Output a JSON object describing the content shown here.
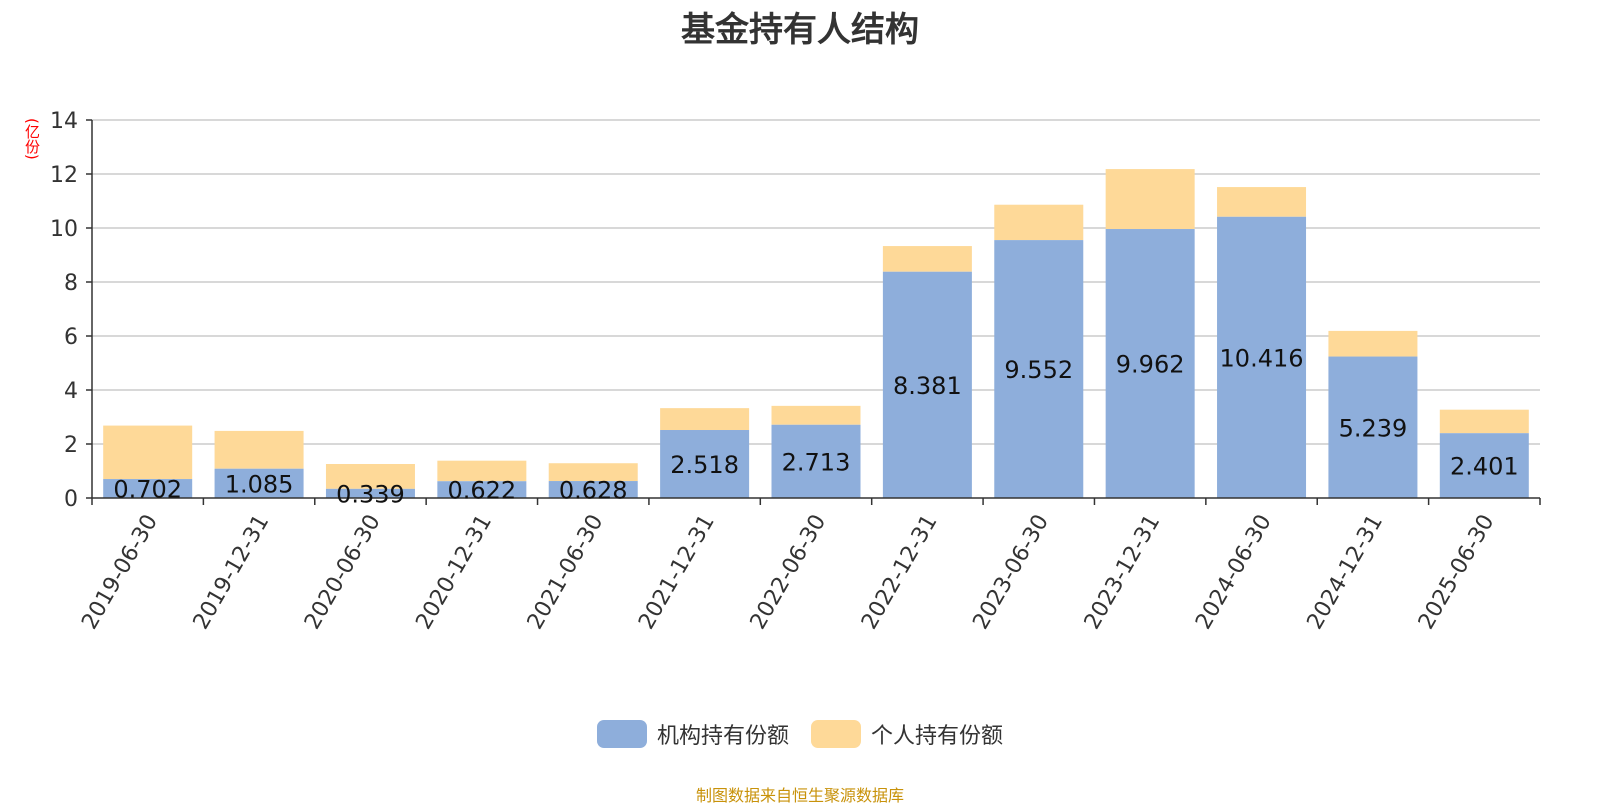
{
  "colors": {
    "institution": "#8eaedb",
    "individual": "#fed998",
    "grid": "#cccccc",
    "axis": "#333333",
    "title": "#333333",
    "unit": "#ff0000",
    "source": "#c8920a"
  },
  "legend": {
    "institution_label": "机构持有份额",
    "individual_label": "个人持有份额"
  },
  "source_note": "制图数据来自恒生聚源数据库",
  "chart_data": {
    "type": "bar",
    "stacked": true,
    "title": "基金持有人结构",
    "ylabel": "(亿份)",
    "xlabel": "",
    "ylim": [
      0,
      14
    ],
    "yticks": [
      0,
      2,
      4,
      6,
      8,
      10,
      12,
      14
    ],
    "grid": true,
    "legend_position": "bottom-center",
    "categories": [
      "2019-06-30",
      "2019-12-31",
      "2020-06-30",
      "2020-12-31",
      "2021-06-30",
      "2021-12-31",
      "2022-06-30",
      "2022-12-31",
      "2023-06-30",
      "2023-12-31",
      "2024-06-30",
      "2024-12-31",
      "2025-06-30"
    ],
    "series": [
      {
        "name": "机构持有份额",
        "values": [
          0.702,
          1.085,
          0.339,
          0.622,
          0.628,
          2.518,
          2.713,
          8.381,
          9.552,
          9.962,
          10.416,
          5.239,
          2.401
        ],
        "labels": [
          "0.702",
          "1.085",
          "0.339",
          "0.622",
          "0.628",
          "2.518",
          "2.713",
          "8.381",
          "9.552",
          "9.962",
          "10.416",
          "5.239",
          "2.401"
        ]
      },
      {
        "name": "个人持有份额",
        "values": [
          1.98,
          1.4,
          0.92,
          0.76,
          0.66,
          0.81,
          0.7,
          0.95,
          1.31,
          2.22,
          1.1,
          0.95,
          0.87
        ]
      }
    ]
  }
}
